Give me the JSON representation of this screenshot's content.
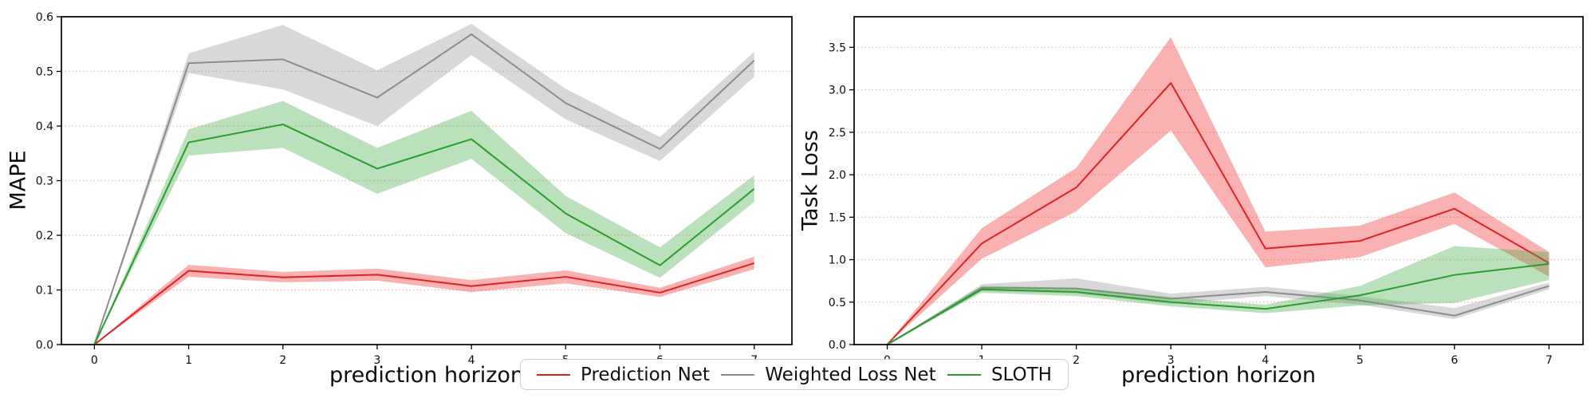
{
  "figure": {
    "background": "#ffffff"
  },
  "legend": {
    "items": [
      {
        "label": "Prediction Net",
        "color": "#dd2222"
      },
      {
        "label": "Weighted Loss Net",
        "color": "#8c8c8c"
      },
      {
        "label": "SLOTH",
        "color": "#2a9d2f"
      }
    ]
  },
  "chart_data": [
    {
      "type": "line",
      "name": "mape-chart",
      "title": "",
      "xlabel": "prediction horizon",
      "ylabel": "MAPE",
      "x": [
        0,
        1,
        2,
        3,
        4,
        5,
        6,
        7
      ],
      "xticks": [
        "0",
        "1",
        "2",
        "3",
        "4",
        "5",
        "6",
        "7"
      ],
      "yticks": [
        "0.0",
        "0.1",
        "0.2",
        "0.3",
        "0.4",
        "0.5",
        "0.6"
      ],
      "xlim": [
        -0.35,
        7.4
      ],
      "ylim": [
        0,
        0.6
      ],
      "grid": "horizontal-dotted",
      "grid_color": "#f3b0b0",
      "legend_position": "bottom-center",
      "series": [
        {
          "name": "Prediction Net",
          "color": "#dd2222",
          "band_color": "#ee3333",
          "values": [
            0.0,
            0.135,
            0.123,
            0.128,
            0.107,
            0.124,
            0.095,
            0.149
          ],
          "lower": [
            0.0,
            0.124,
            0.114,
            0.117,
            0.096,
            0.112,
            0.087,
            0.138
          ],
          "upper": [
            0.0,
            0.146,
            0.133,
            0.139,
            0.118,
            0.136,
            0.104,
            0.161
          ]
        },
        {
          "name": "Weighted Loss Net",
          "color": "#8c8c8c",
          "band_color": "#999999",
          "values": [
            0.0,
            0.515,
            0.522,
            0.452,
            0.568,
            0.442,
            0.358,
            0.52
          ],
          "lower": [
            0.0,
            0.497,
            0.467,
            0.4,
            0.53,
            0.412,
            0.336,
            0.49
          ],
          "upper": [
            0.0,
            0.533,
            0.585,
            0.502,
            0.587,
            0.468,
            0.38,
            0.536
          ]
        },
        {
          "name": "SLOTH",
          "color": "#2a9d2f",
          "band_color": "#4caf50",
          "values": [
            0.0,
            0.37,
            0.403,
            0.322,
            0.376,
            0.24,
            0.145,
            0.285
          ],
          "lower": [
            0.0,
            0.346,
            0.36,
            0.276,
            0.34,
            0.204,
            0.122,
            0.261
          ],
          "upper": [
            0.0,
            0.394,
            0.446,
            0.36,
            0.428,
            0.272,
            0.178,
            0.31
          ]
        }
      ]
    },
    {
      "type": "line",
      "name": "task-loss-chart",
      "title": "",
      "xlabel": "prediction horizon",
      "ylabel": "Task Loss",
      "x": [
        0,
        1,
        2,
        3,
        4,
        5,
        6,
        7
      ],
      "xticks": [
        "0",
        "1",
        "2",
        "3",
        "4",
        "5",
        "6",
        "7"
      ],
      "yticks": [
        "0.0",
        "0.5",
        "1.0",
        "1.5",
        "2.0",
        "2.5",
        "3.0",
        "3.5"
      ],
      "xlim": [
        -0.35,
        7.36
      ],
      "ylim": [
        0,
        3.86
      ],
      "grid": "horizontal-dotted",
      "grid_color": "#f3b0b0",
      "legend_position": "bottom-center",
      "series": [
        {
          "name": "Prediction Net",
          "color": "#dd2222",
          "band_color": "#ee3333",
          "values": [
            0.0,
            1.19,
            1.85,
            3.08,
            1.13,
            1.22,
            1.6,
            0.96
          ],
          "lower": [
            0.0,
            1.01,
            1.57,
            2.52,
            0.91,
            1.03,
            1.42,
            0.8
          ],
          "upper": [
            0.0,
            1.37,
            2.08,
            3.62,
            1.33,
            1.4,
            1.79,
            1.09
          ]
        },
        {
          "name": "Weighted Loss Net",
          "color": "#8c8c8c",
          "band_color": "#999999",
          "values": [
            0.0,
            0.67,
            0.66,
            0.54,
            0.62,
            0.52,
            0.34,
            0.69
          ],
          "lower": [
            0.0,
            0.63,
            0.6,
            0.48,
            0.57,
            0.47,
            0.3,
            0.65
          ],
          "upper": [
            0.0,
            0.71,
            0.78,
            0.6,
            0.68,
            0.57,
            0.43,
            0.73
          ]
        },
        {
          "name": "SLOTH",
          "color": "#2a9d2f",
          "band_color": "#4caf50",
          "values": [
            0.0,
            0.65,
            0.62,
            0.5,
            0.42,
            0.58,
            0.82,
            0.95
          ],
          "lower": [
            0.0,
            0.61,
            0.57,
            0.45,
            0.37,
            0.46,
            0.49,
            0.76
          ],
          "upper": [
            0.0,
            0.69,
            0.67,
            0.56,
            0.47,
            0.69,
            1.16,
            1.09
          ]
        }
      ]
    }
  ]
}
